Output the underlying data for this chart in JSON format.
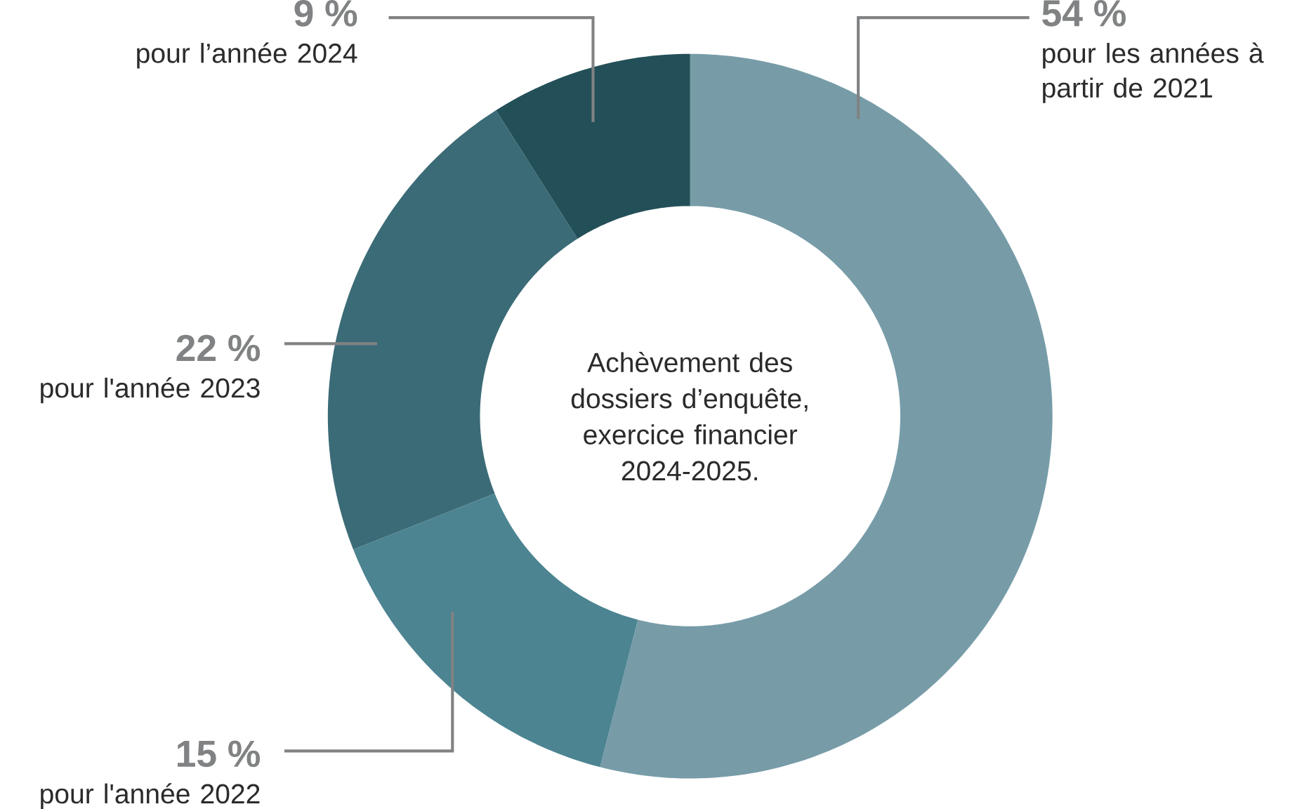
{
  "chart_data": {
    "type": "donut",
    "title": "Achèvement des dossiers d’enquête, exercice financier 2024-2025.",
    "categories": [
      "pour les années à partir de 2021",
      "pour l'année 2022",
      "pour l'année 2023",
      "pour l’année 2024"
    ],
    "values": [
      54,
      15,
      22,
      9
    ],
    "value_labels": [
      "54 %",
      "15 %",
      "22 %",
      "9 %"
    ],
    "colors": [
      "#779ca8",
      "#4c8491",
      "#3b6b76",
      "#234f58"
    ]
  }
}
